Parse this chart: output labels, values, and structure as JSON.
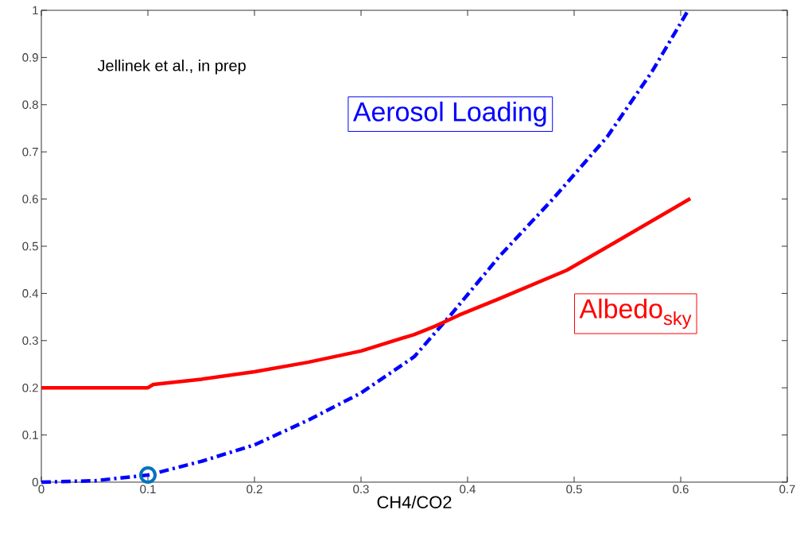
{
  "chart_data": {
    "type": "line",
    "xlabel": "CH4/CO2",
    "xlim": [
      0,
      0.7
    ],
    "xticks": [
      0,
      0.1,
      0.2,
      0.3,
      0.4,
      0.5,
      0.6,
      0.7
    ],
    "ylim": [
      0,
      1
    ],
    "yticks": [
      0,
      0.1,
      0.2,
      0.3,
      0.4,
      0.5,
      0.6,
      0.7,
      0.8,
      0.9,
      1
    ],
    "grid": false,
    "marker": "none",
    "annotations": [
      "Jellinek et al., in prep"
    ],
    "series": [
      {
        "name": "Aerosol Loading",
        "color": "#0000ff",
        "line_style": "dashdot",
        "x": [
          0,
          0.05,
          0.1,
          0.15,
          0.2,
          0.25,
          0.3,
          0.35,
          0.384,
          0.43,
          0.48,
          0.531,
          0.573,
          0.607
        ],
        "values": [
          0,
          0.003,
          0.015,
          0.044,
          0.079,
          0.131,
          0.189,
          0.266,
          0.354,
          0.479,
          0.6,
          0.732,
          0.87,
          1.0
        ]
      },
      {
        "name": "Albedo$_{sky}$",
        "color": "#ff0000",
        "line_style": "solid",
        "x": [
          0,
          0.1,
          0.105,
          0.15,
          0.2,
          0.25,
          0.3,
          0.35,
          0.37,
          0.392,
          0.43,
          0.493,
          0.536,
          0.609
        ],
        "values": [
          0.2,
          0.2,
          0.207,
          0.218,
          0.234,
          0.254,
          0.278,
          0.313,
          0.331,
          0.354,
          0.389,
          0.449,
          0.505,
          0.601
        ]
      },
      {
        "type": "scatter",
        "marker": "circle",
        "color": "#0072bd",
        "x": [
          0.1
        ],
        "values": [
          0.015
        ]
      }
    ]
  }
}
